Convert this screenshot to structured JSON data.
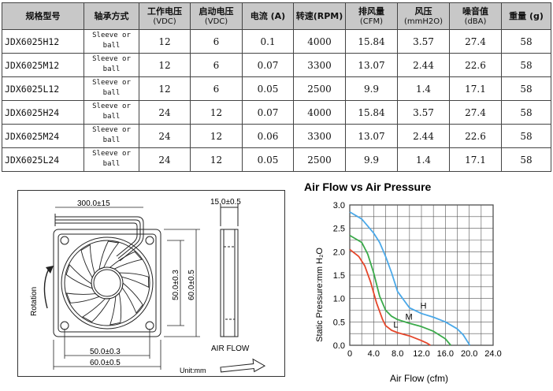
{
  "table": {
    "headers": [
      {
        "label": "规格型号",
        "unit": ""
      },
      {
        "label": "轴承方式",
        "unit": ""
      },
      {
        "label": "工作电压",
        "unit": "(VDC)"
      },
      {
        "label": "启动电压",
        "unit": "(VDC)"
      },
      {
        "label": "电流 (A)",
        "unit": ""
      },
      {
        "label": "转速(RPM)",
        "unit": ""
      },
      {
        "label": "排风量",
        "unit": "(CFM)"
      },
      {
        "label": "风压",
        "unit": "(mmH2O)"
      },
      {
        "label": "噪音值",
        "unit": "(dBA)"
      },
      {
        "label": "重量 (g)",
        "unit": ""
      }
    ],
    "rows": [
      {
        "model": "JDX6025H12",
        "bearing_1": "Sleeve or",
        "bearing_2": "ball",
        "voltage": "12",
        "start": "6",
        "current": "0.1",
        "rpm": "4000",
        "cfm": "15.84",
        "pressure": "3.57",
        "noise": "27.4",
        "weight": "58"
      },
      {
        "model": "JDX6025M12",
        "bearing_1": "Sleeve or",
        "bearing_2": "ball",
        "voltage": "12",
        "start": "6",
        "current": "0.07",
        "rpm": "3300",
        "cfm": "13.07",
        "pressure": "2.44",
        "noise": "22.6",
        "weight": "58"
      },
      {
        "model": "JDX6025L12",
        "bearing_1": "Sleeve or",
        "bearing_2": "ball",
        "voltage": "12",
        "start": "6",
        "current": "0.05",
        "rpm": "2500",
        "cfm": "9.9",
        "pressure": "1.4",
        "noise": "17.1",
        "weight": "58"
      },
      {
        "model": "JDX6025H24",
        "bearing_1": "Sleeve or",
        "bearing_2": "ball",
        "voltage": "24",
        "start": "12",
        "current": "0.07",
        "rpm": "4000",
        "cfm": "15.84",
        "pressure": "3.57",
        "noise": "27.4",
        "weight": "58"
      },
      {
        "model": "JDX6025M24",
        "bearing_1": "Sleeve or",
        "bearing_2": "ball",
        "voltage": "24",
        "start": "12",
        "current": "0.06",
        "rpm": "3300",
        "cfm": "13.07",
        "pressure": "2.44",
        "noise": "22.6",
        "weight": "58"
      },
      {
        "model": "JDX6025L24",
        "bearing_1": "Sleeve or",
        "bearing_2": "ball",
        "voltage": "24",
        "start": "12",
        "current": "0.05",
        "rpm": "2500",
        "cfm": "9.9",
        "pressure": "1.4",
        "noise": "17.1",
        "weight": "58"
      }
    ]
  },
  "drawing": {
    "cable_length": "300.0±15",
    "thickness": "15.0±0.5",
    "hole_spacing": "50.0±0.3",
    "frame_size": "60.0±0.5",
    "rotation_label": "Rotation",
    "airflow_label": "AIR FLOW",
    "unit_label": "Unit:mm"
  },
  "chart_data": {
    "type": "line",
    "title": "Air Flow vs Air Pressure",
    "xlabel": "Air Flow (cfm)",
    "ylabel": "Static Pressure:mm H₂O",
    "xlim": [
      0,
      24
    ],
    "ylim": [
      0,
      3
    ],
    "xticks": [
      "0",
      "4.0",
      "8.0",
      "12.0",
      "16.0",
      "20.0",
      "24.0"
    ],
    "yticks": [
      "0.0",
      "0.5",
      "1.0",
      "1.5",
      "2.0",
      "2.5",
      "3.0"
    ],
    "grid": true,
    "series": [
      {
        "name": "H",
        "color": "#4aa8e8",
        "x": [
          0,
          2,
          4,
          5,
          6,
          7,
          8,
          10,
          12,
          14,
          16,
          18,
          19,
          20.1
        ],
        "y": [
          2.85,
          2.7,
          2.4,
          2.2,
          1.9,
          1.55,
          1.15,
          0.8,
          0.68,
          0.6,
          0.5,
          0.35,
          0.22,
          0.0
        ]
      },
      {
        "name": "M",
        "color": "#3aaa4a",
        "x": [
          0,
          2,
          3,
          4,
          5,
          6,
          7,
          8,
          10,
          12,
          14,
          16,
          16.9
        ],
        "y": [
          2.35,
          2.2,
          1.95,
          1.55,
          1.05,
          0.75,
          0.62,
          0.55,
          0.47,
          0.4,
          0.3,
          0.14,
          0.0
        ]
      },
      {
        "name": "L",
        "color": "#e5462a",
        "x": [
          0,
          1.5,
          2.5,
          3.5,
          4.5,
          5.5,
          6,
          7,
          8,
          10,
          12,
          13,
          13.5
        ],
        "y": [
          2.05,
          1.9,
          1.7,
          1.35,
          0.9,
          0.55,
          0.42,
          0.32,
          0.27,
          0.2,
          0.1,
          0.04,
          0.0
        ]
      }
    ]
  }
}
